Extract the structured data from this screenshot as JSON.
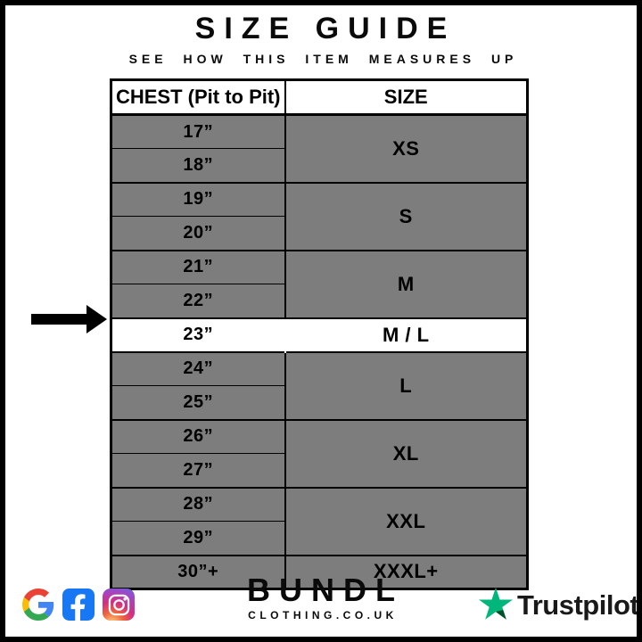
{
  "header": {
    "title": "SIZE GUIDE",
    "subtitle": "SEE HOW THIS ITEM MEASURES UP"
  },
  "table": {
    "columns": [
      "CHEST (Pit to Pit)",
      "SIZE"
    ],
    "groups": [
      {
        "chest": [
          "17”",
          "18”"
        ],
        "size": "XS",
        "highlight": false
      },
      {
        "chest": [
          "19”",
          "20”"
        ],
        "size": "S",
        "highlight": false
      },
      {
        "chest": [
          "21”",
          "22”"
        ],
        "size": "M",
        "highlight": false
      },
      {
        "chest": [
          "23”"
        ],
        "size": "M / L",
        "highlight": true
      },
      {
        "chest": [
          "24”",
          "25”"
        ],
        "size": "L",
        "highlight": false
      },
      {
        "chest": [
          "26”",
          "27”"
        ],
        "size": "XL",
        "highlight": false
      },
      {
        "chest": [
          "28”",
          "29”"
        ],
        "size": "XXL",
        "highlight": false
      },
      {
        "chest": [
          "30”+"
        ],
        "size": "XXXL+",
        "highlight": false
      }
    ],
    "indicator_icon": "right-arrow-icon"
  },
  "footer": {
    "social_icons": [
      "google-icon",
      "facebook-icon",
      "instagram-icon"
    ],
    "brand": "BUNDL",
    "brand_domain": "CLOTHING.CO.UK",
    "trustpilot_label": "Trustpilot",
    "trustpilot_icon": "trustpilot-star-icon"
  },
  "colors": {
    "row_gray": "#7d7d7d",
    "highlight_row": "#ffffff",
    "border": "#000000",
    "trustpilot_green": "#00b67a",
    "trustpilot_dark_green": "#005128",
    "facebook_blue": "#1877f2"
  }
}
